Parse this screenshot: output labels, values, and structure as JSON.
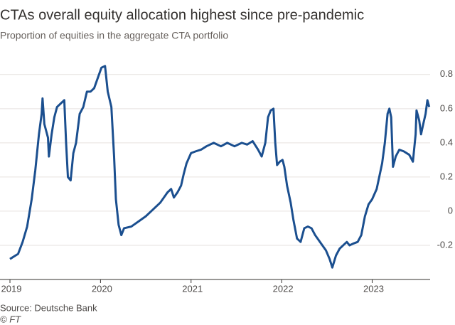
{
  "chart_data": {
    "type": "line",
    "title": "CTAs overall equity allocation highest since pre-pandemic",
    "subtitle": "Proportion of equities in the aggregate CTA portfolio",
    "source": "Source: Deutsche Bank",
    "credit": "© FT",
    "color": "#1b4f8f",
    "grid": true,
    "xlim": [
      2019,
      2023.64
    ],
    "xticks": [
      2019,
      2020,
      2021,
      2022,
      2023
    ],
    "ylim": [
      -0.4,
      0.87
    ],
    "yticks": [
      -0.2,
      0,
      0.2,
      0.4,
      0.6,
      0.8
    ],
    "x": [
      2019.0,
      2019.09,
      2019.14,
      2019.19,
      2019.24,
      2019.28,
      2019.32,
      2019.35,
      2019.36,
      2019.38,
      2019.42,
      2019.43,
      2019.46,
      2019.49,
      2019.52,
      2019.56,
      2019.6,
      2019.62,
      2019.64,
      2019.67,
      2019.7,
      2019.73,
      2019.77,
      2019.81,
      2019.85,
      2019.89,
      2019.93,
      2019.97,
      2020.01,
      2020.05,
      2020.08,
      2020.12,
      2020.15,
      2020.17,
      2020.2,
      2020.23,
      2020.26,
      2020.34,
      2020.42,
      2020.5,
      2020.58,
      2020.66,
      2020.74,
      2020.78,
      2020.81,
      2020.85,
      2020.89,
      2020.92,
      2020.95,
      2021.0,
      2021.05,
      2021.11,
      2021.17,
      2021.25,
      2021.33,
      2021.4,
      2021.48,
      2021.56,
      2021.62,
      2021.68,
      2021.74,
      2021.78,
      2021.82,
      2021.85,
      2021.88,
      2021.91,
      2021.93,
      2021.95,
      2021.98,
      2022.01,
      2022.03,
      2022.06,
      2022.1,
      2022.13,
      2022.17,
      2022.21,
      2022.25,
      2022.29,
      2022.33,
      2022.37,
      2022.41,
      2022.45,
      2022.49,
      2022.53,
      2022.56,
      2022.6,
      2022.64,
      2022.68,
      2022.72,
      2022.75,
      2022.79,
      2022.84,
      2022.88,
      2022.92,
      2022.96,
      2023.0,
      2023.05,
      2023.11,
      2023.14,
      2023.17,
      2023.19,
      2023.21,
      2023.23,
      2023.26,
      2023.3,
      2023.35,
      2023.41,
      2023.45,
      2023.48,
      2023.49,
      2023.52,
      2023.54,
      2023.56,
      2023.59,
      2023.61,
      2023.63
    ],
    "values": [
      -0.28,
      -0.25,
      -0.18,
      -0.09,
      0.07,
      0.24,
      0.45,
      0.57,
      0.66,
      0.51,
      0.43,
      0.32,
      0.45,
      0.55,
      0.61,
      0.63,
      0.65,
      0.4,
      0.2,
      0.18,
      0.34,
      0.4,
      0.57,
      0.61,
      0.7,
      0.7,
      0.72,
      0.78,
      0.84,
      0.85,
      0.7,
      0.61,
      0.32,
      0.07,
      -0.08,
      -0.14,
      -0.1,
      -0.09,
      -0.06,
      -0.03,
      0.01,
      0.05,
      0.11,
      0.13,
      0.08,
      0.11,
      0.15,
      0.22,
      0.28,
      0.34,
      0.35,
      0.36,
      0.38,
      0.4,
      0.38,
      0.4,
      0.38,
      0.4,
      0.39,
      0.41,
      0.36,
      0.32,
      0.4,
      0.55,
      0.59,
      0.6,
      0.4,
      0.27,
      0.29,
      0.3,
      0.26,
      0.15,
      0.05,
      -0.05,
      -0.16,
      -0.18,
      -0.1,
      -0.09,
      -0.1,
      -0.14,
      -0.17,
      -0.2,
      -0.23,
      -0.28,
      -0.33,
      -0.26,
      -0.22,
      -0.2,
      -0.18,
      -0.2,
      -0.19,
      -0.18,
      -0.14,
      -0.03,
      0.04,
      0.07,
      0.13,
      0.28,
      0.4,
      0.57,
      0.6,
      0.55,
      0.26,
      0.32,
      0.36,
      0.35,
      0.33,
      0.29,
      0.45,
      0.59,
      0.53,
      0.45,
      0.5,
      0.57,
      0.65,
      0.61
    ]
  }
}
